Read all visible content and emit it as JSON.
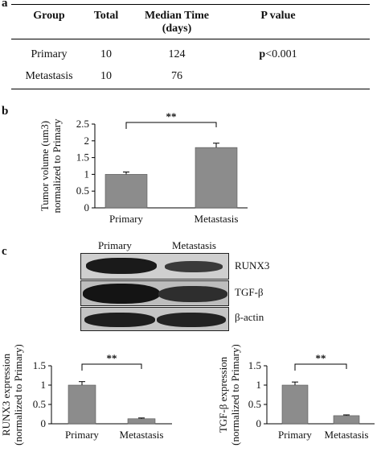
{
  "panel_a": {
    "letter": "a",
    "headers": [
      "Group",
      "Total",
      "Median Time\n(days)",
      "P value"
    ],
    "rows": [
      {
        "group": "Primary",
        "total": "10",
        "median": "124",
        "p_bold": "p",
        "p_rest": "<0.001"
      },
      {
        "group": "Metastasis",
        "total": "10",
        "median": "76",
        "p_bold": "",
        "p_rest": ""
      }
    ]
  },
  "panel_b_letter": "b",
  "panel_c": {
    "letter": "c",
    "lane_labels": [
      "Primary",
      "Metastasis"
    ],
    "blot_labels": [
      "RUNX3",
      "TGF-β",
      "β-actin"
    ]
  },
  "chart_data": [
    {
      "type": "bar",
      "categories": [
        "Primary",
        "Metastasis"
      ],
      "values": [
        1.0,
        1.8
      ],
      "errors": [
        0.07,
        0.13
      ],
      "ylabel_lines": [
        "Tumor volume (um3)",
        "normalized to Primary"
      ],
      "ylim": [
        0,
        2.5
      ],
      "yticks": [
        "0",
        "0.5",
        "1",
        "1.5",
        "2",
        "2.5"
      ],
      "significance": "**",
      "bar_color": "#8c8c8c"
    },
    {
      "type": "bar",
      "categories": [
        "Primary",
        "Metastasis"
      ],
      "values": [
        1.0,
        0.13
      ],
      "errors": [
        0.09,
        0.02
      ],
      "ylabel_lines": [
        "RUNX3 expression",
        "(normalized to Primary)"
      ],
      "ylim": [
        0,
        1.5
      ],
      "yticks": [
        "0",
        "0.5",
        "1",
        "1.5"
      ],
      "significance": "**",
      "bar_color": "#8c8c8c"
    },
    {
      "type": "bar",
      "categories": [
        "Primary",
        "Metastasis"
      ],
      "values": [
        1.0,
        0.21
      ],
      "errors": [
        0.08,
        0.02
      ],
      "ylabel_lines": [
        "TGF-β expression",
        "(normalized to Primary)"
      ],
      "ylim": [
        0,
        1.5
      ],
      "yticks": [
        "0",
        "0.5",
        "1",
        "1.5"
      ],
      "significance": "**",
      "bar_color": "#8c8c8c"
    }
  ]
}
